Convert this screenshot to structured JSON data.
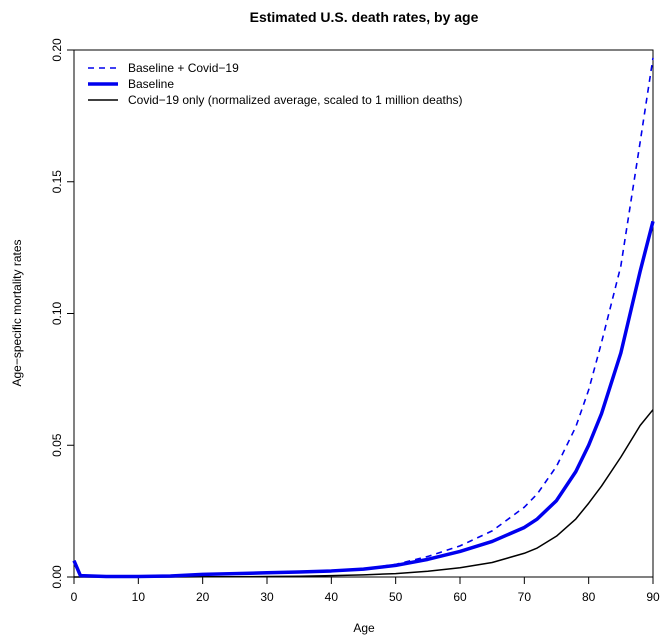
{
  "chart_data": {
    "type": "line",
    "title": "Estimated U.S. death rates, by age",
    "xlabel": "Age",
    "ylabel": "Age−specific mortality rates",
    "xlim": [
      0,
      90
    ],
    "ylim": [
      0,
      0.2
    ],
    "xticks": [
      0,
      10,
      20,
      30,
      40,
      50,
      60,
      70,
      80,
      90
    ],
    "xtick_labels": [
      "0",
      "10",
      "20",
      "30",
      "40",
      "50",
      "60",
      "70",
      "80",
      "90"
    ],
    "yticks": [
      0,
      0.05,
      0.1,
      0.15,
      0.2
    ],
    "ytick_labels": [
      "0.00",
      "0.05",
      "0.10",
      "0.15",
      "0.20"
    ],
    "grid": false,
    "legend_position": "top-left",
    "x": [
      0,
      1,
      5,
      10,
      15,
      20,
      25,
      30,
      35,
      40,
      45,
      50,
      55,
      60,
      65,
      70,
      72,
      75,
      78,
      80,
      82,
      85,
      88,
      90
    ],
    "series": [
      {
        "name": "Baseline + Covid−19",
        "color": "#0000ee",
        "style": "dashed",
        "values": [
          0.0062,
          0.0005,
          0.0002,
          0.0002,
          0.0004,
          0.001,
          0.0013,
          0.0016,
          0.0019,
          0.0023,
          0.0031,
          0.0048,
          0.0078,
          0.0118,
          0.0175,
          0.0265,
          0.0315,
          0.042,
          0.057,
          0.071,
          0.089,
          0.118,
          0.165,
          0.197
        ]
      },
      {
        "name": "Baseline",
        "color": "#0000ee",
        "style": "solid-thick",
        "values": [
          0.0062,
          0.0005,
          0.0002,
          0.0002,
          0.0004,
          0.001,
          0.0013,
          0.0016,
          0.0019,
          0.0023,
          0.003,
          0.0044,
          0.0067,
          0.0097,
          0.0135,
          0.0188,
          0.022,
          0.029,
          0.04,
          0.05,
          0.062,
          0.085,
          0.116,
          0.135
        ]
      },
      {
        "name": "Covid−19 only (normalized average, scaled to 1 million deaths)",
        "color": "#000000",
        "style": "solid",
        "values": [
          0.0,
          0.0,
          0.0,
          0.0,
          0.0,
          0.0001,
          0.0001,
          0.0002,
          0.0003,
          0.0005,
          0.0008,
          0.0013,
          0.0022,
          0.0035,
          0.0055,
          0.009,
          0.011,
          0.0155,
          0.022,
          0.028,
          0.0345,
          0.0455,
          0.0575,
          0.0635
        ]
      }
    ]
  }
}
